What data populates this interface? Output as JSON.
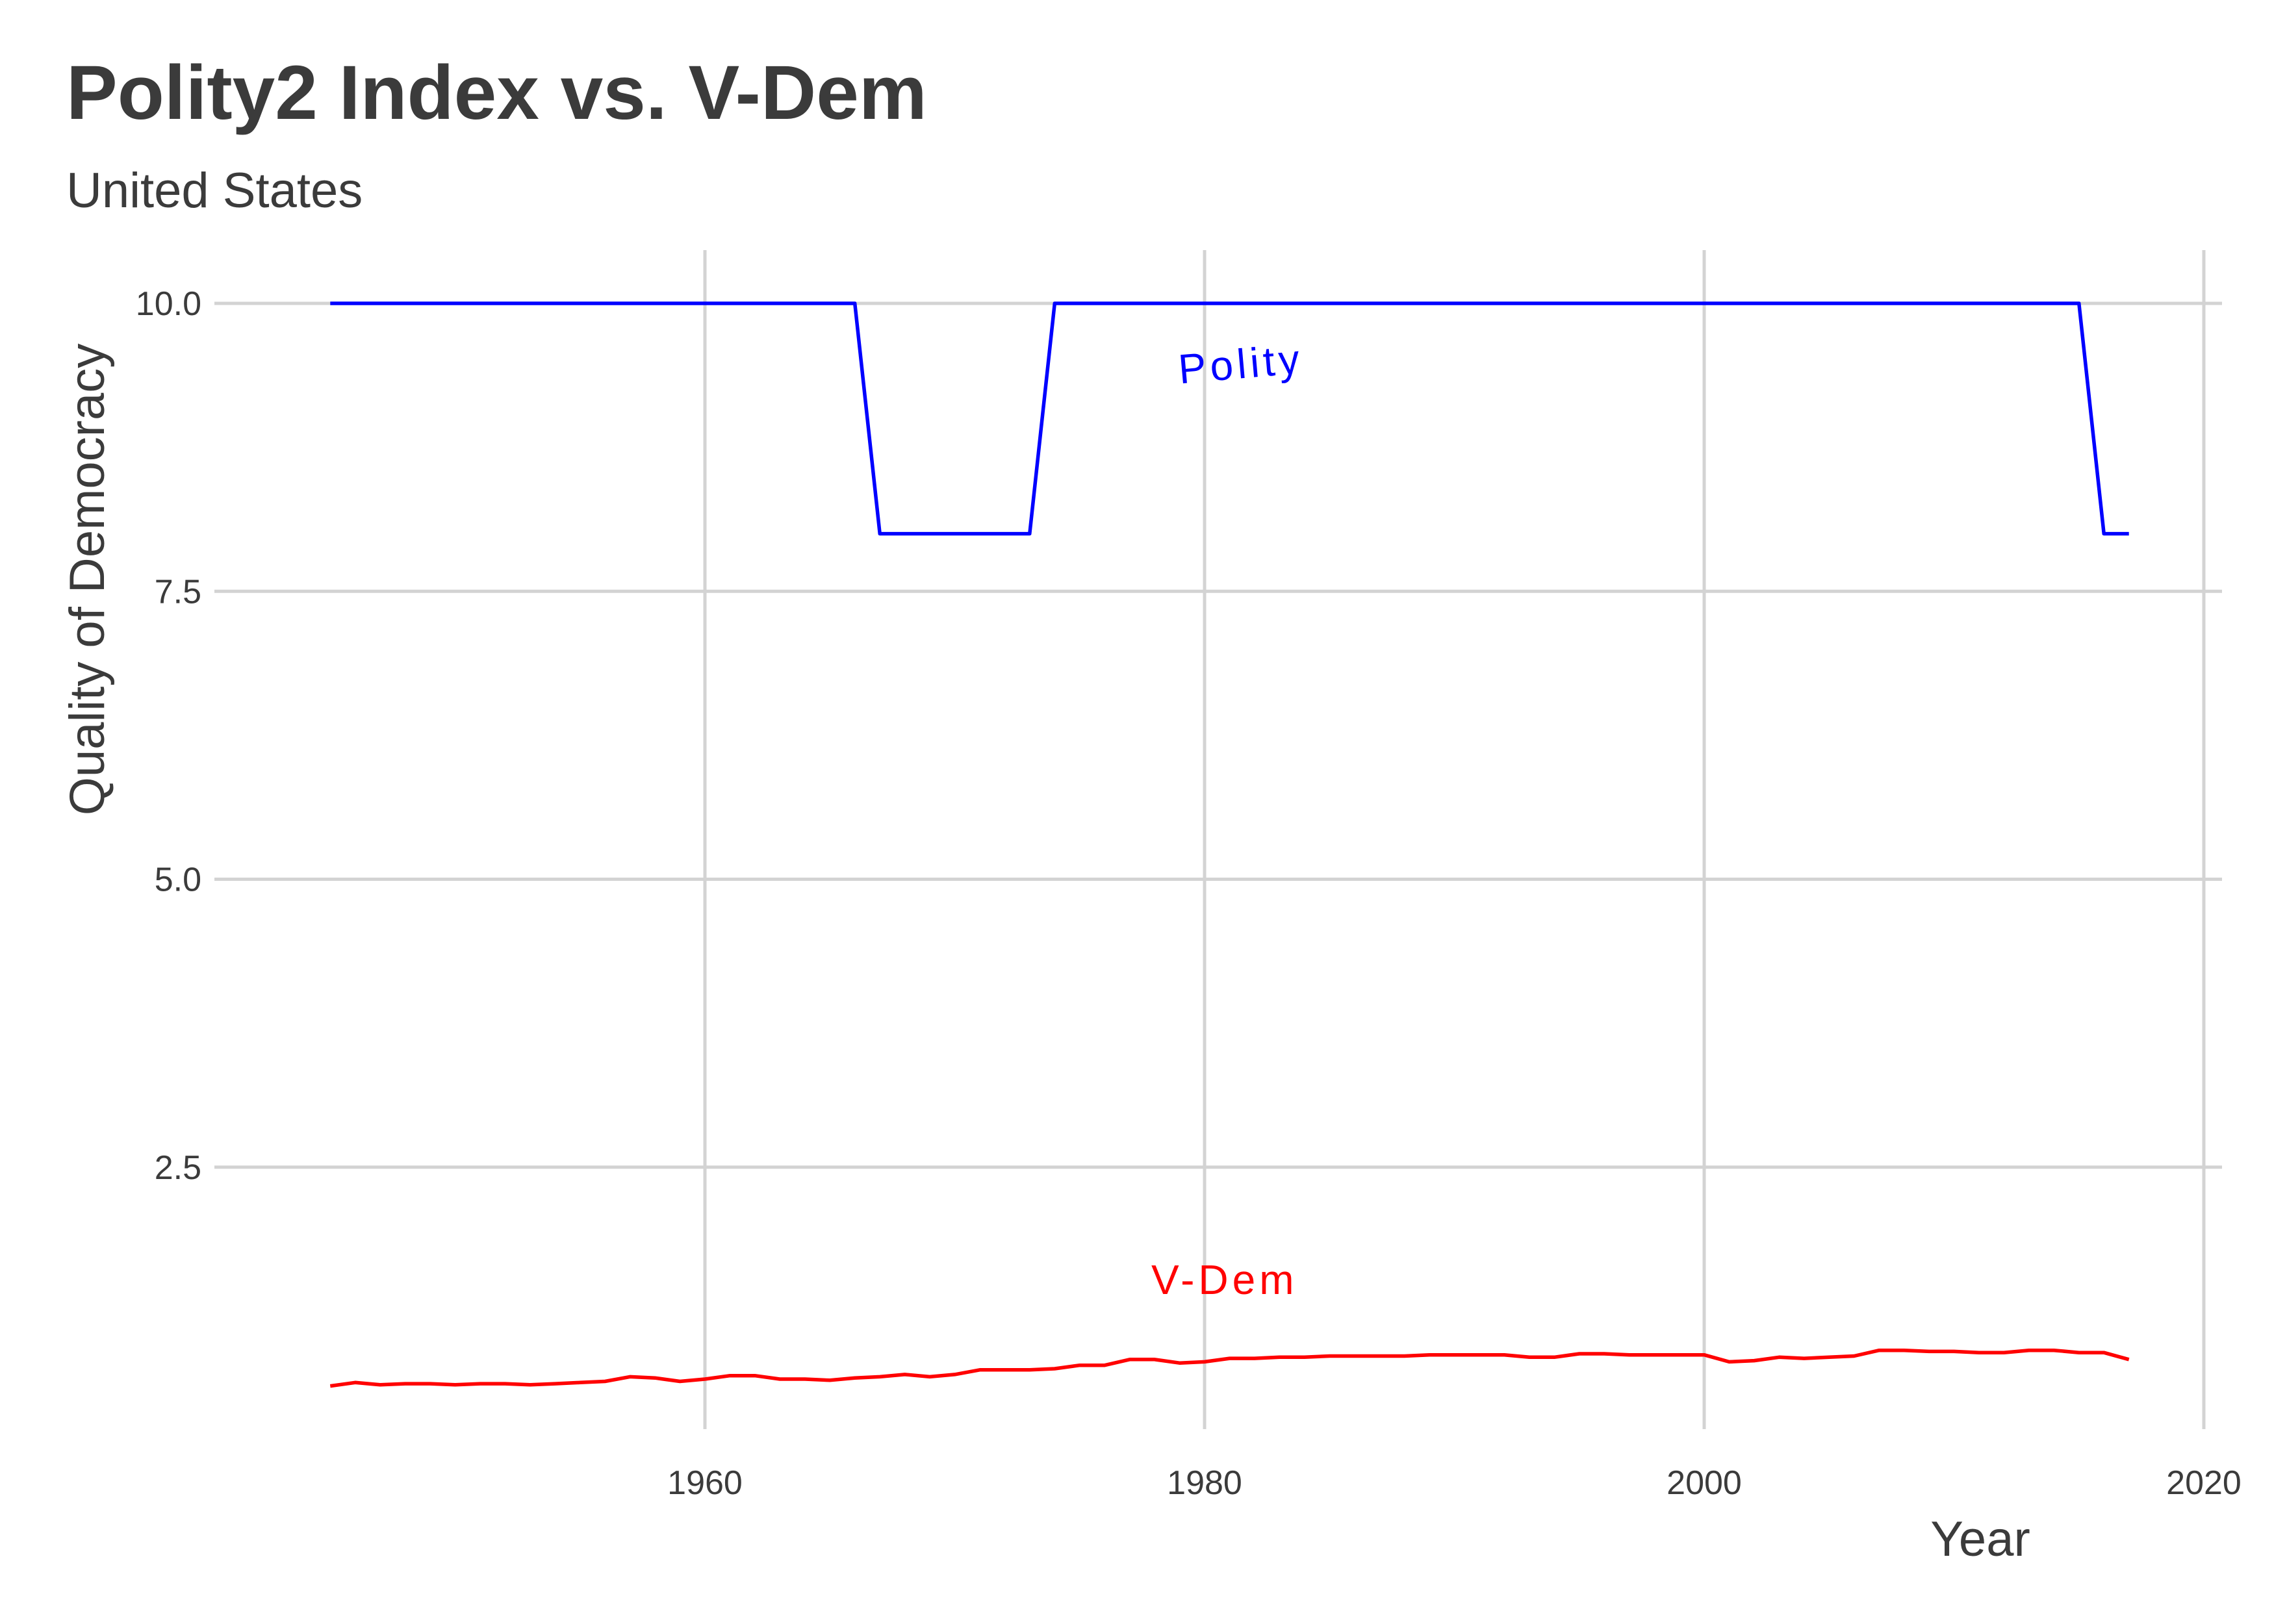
{
  "chart_data": {
    "type": "line",
    "title": "Polity2 Index vs. V-Dem",
    "subtitle": "United States",
    "xlabel": "Year",
    "ylabel": "Quality of Democracy",
    "xlim": [
      1942,
      2020
    ],
    "ylim": [
      0,
      10.4
    ],
    "x_ticks": [
      1960,
      1980,
      2000,
      2020
    ],
    "y_ticks": [
      2.5,
      5.0,
      7.5,
      10.0
    ],
    "x_tick_labels": [
      "1960",
      "1980",
      "2000",
      "2020"
    ],
    "y_tick_labels": [
      "2.5",
      "5.0",
      "7.5",
      "10.0"
    ],
    "grid": true,
    "legend": "none",
    "series": [
      {
        "name": "Polity",
        "color": "#0000ff",
        "label_at": {
          "x": 1981.5,
          "y": 9.35
        },
        "points": [
          [
            1945,
            10
          ],
          [
            1966,
            10
          ],
          [
            1967,
            8
          ],
          [
            1973,
            8
          ],
          [
            1974,
            10
          ],
          [
            2015,
            10
          ],
          [
            2016,
            8
          ],
          [
            2017,
            8
          ]
        ]
      },
      {
        "name": "V-Dem",
        "color": "#ff0000",
        "label_at": {
          "x": 1980.8,
          "y": 1.4
        },
        "points": [
          [
            1945,
            0.6
          ],
          [
            1946,
            0.63
          ],
          [
            1947,
            0.61
          ],
          [
            1948,
            0.62
          ],
          [
            1949,
            0.62
          ],
          [
            1950,
            0.61
          ],
          [
            1951,
            0.62
          ],
          [
            1952,
            0.62
          ],
          [
            1953,
            0.61
          ],
          [
            1954,
            0.62
          ],
          [
            1955,
            0.63
          ],
          [
            1956,
            0.64
          ],
          [
            1957,
            0.68
          ],
          [
            1958,
            0.67
          ],
          [
            1959,
            0.64
          ],
          [
            1960,
            0.66
          ],
          [
            1961,
            0.69
          ],
          [
            1962,
            0.69
          ],
          [
            1963,
            0.66
          ],
          [
            1964,
            0.66
          ],
          [
            1965,
            0.65
          ],
          [
            1966,
            0.67
          ],
          [
            1967,
            0.68
          ],
          [
            1968,
            0.7
          ],
          [
            1969,
            0.68
          ],
          [
            1970,
            0.7
          ],
          [
            1971,
            0.74
          ],
          [
            1972,
            0.74
          ],
          [
            1973,
            0.74
          ],
          [
            1974,
            0.75
          ],
          [
            1975,
            0.78
          ],
          [
            1976,
            0.78
          ],
          [
            1977,
            0.83
          ],
          [
            1978,
            0.83
          ],
          [
            1979,
            0.8
          ],
          [
            1980,
            0.81
          ],
          [
            1981,
            0.84
          ],
          [
            1982,
            0.84
          ],
          [
            1983,
            0.85
          ],
          [
            1984,
            0.85
          ],
          [
            1985,
            0.86
          ],
          [
            1986,
            0.86
          ],
          [
            1987,
            0.86
          ],
          [
            1988,
            0.86
          ],
          [
            1989,
            0.87
          ],
          [
            1990,
            0.87
          ],
          [
            1991,
            0.87
          ],
          [
            1992,
            0.87
          ],
          [
            1993,
            0.85
          ],
          [
            1994,
            0.85
          ],
          [
            1995,
            0.88
          ],
          [
            1996,
            0.88
          ],
          [
            1997,
            0.87
          ],
          [
            1998,
            0.87
          ],
          [
            1999,
            0.87
          ],
          [
            2000,
            0.87
          ],
          [
            2001,
            0.81
          ],
          [
            2002,
            0.82
          ],
          [
            2003,
            0.85
          ],
          [
            2004,
            0.84
          ],
          [
            2005,
            0.85
          ],
          [
            2006,
            0.86
          ],
          [
            2007,
            0.91
          ],
          [
            2008,
            0.91
          ],
          [
            2009,
            0.9
          ],
          [
            2010,
            0.9
          ],
          [
            2011,
            0.89
          ],
          [
            2012,
            0.89
          ],
          [
            2013,
            0.91
          ],
          [
            2014,
            0.91
          ],
          [
            2015,
            0.89
          ],
          [
            2016,
            0.89
          ],
          [
            2017,
            0.83
          ]
        ]
      }
    ]
  }
}
